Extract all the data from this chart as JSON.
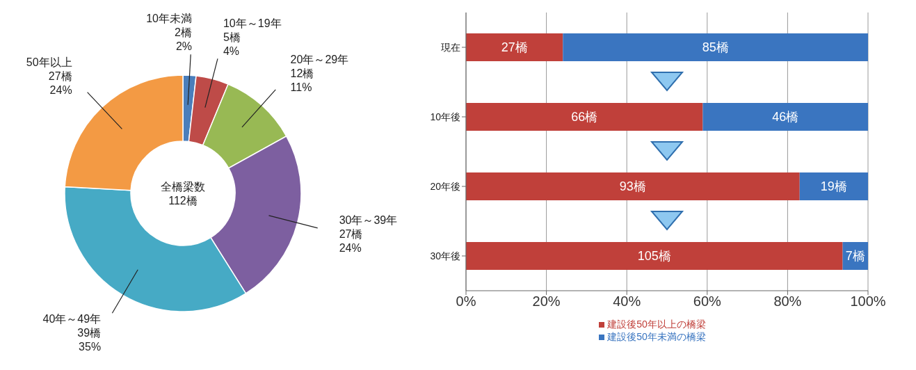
{
  "chart_data": [
    {
      "type": "donut",
      "categories": [
        "10年未満",
        "10年～19年",
        "20年～29年",
        "30年～39年",
        "40年～49年",
        "50年以上"
      ],
      "values": [
        2,
        5,
        12,
        27,
        39,
        27
      ],
      "colors": [
        "#4a7ebb",
        "#be4b48",
        "#98b954",
        "#7d5fa0",
        "#46aac5",
        "#f39a44"
      ],
      "value_labels": [
        "2橋\n2%",
        "5橋\n4%",
        "12橋\n11%",
        "27橋\n24%",
        "39橋\n35%",
        "27橋\n24%"
      ],
      "annotations": [
        "全橋梁数\n112橋"
      ]
    },
    {
      "type": "bar",
      "orientation": "horizontal",
      "stacked": true,
      "categories": [
        "現在",
        "10年後",
        "20年後",
        "30年後"
      ],
      "series": [
        {
          "name": "建設後50年以上の橋梁",
          "color": "#c0403a",
          "values": [
            24.1,
            58.9,
            83.0,
            93.7
          ]
        },
        {
          "name": "建設後50年未満の橋梁",
          "color": "#3a75c0",
          "values": [
            75.9,
            41.1,
            17.0,
            6.3
          ]
        }
      ],
      "annotations": [
        "27橋",
        "85橋",
        "66橋",
        "46橋",
        "93橋",
        "19橋",
        "105橋",
        "7橋"
      ],
      "xlim": [
        0,
        100
      ],
      "xticks": [
        {
          "value": 0,
          "label": "0%"
        },
        {
          "value": 20,
          "label": "20%"
        },
        {
          "value": 40,
          "label": "40%"
        },
        {
          "value": 60,
          "label": "60%"
        },
        {
          "value": 80,
          "label": "80%"
        },
        {
          "value": 100,
          "label": "100%"
        }
      ],
      "grid": "x",
      "legend": "bottom"
    }
  ]
}
